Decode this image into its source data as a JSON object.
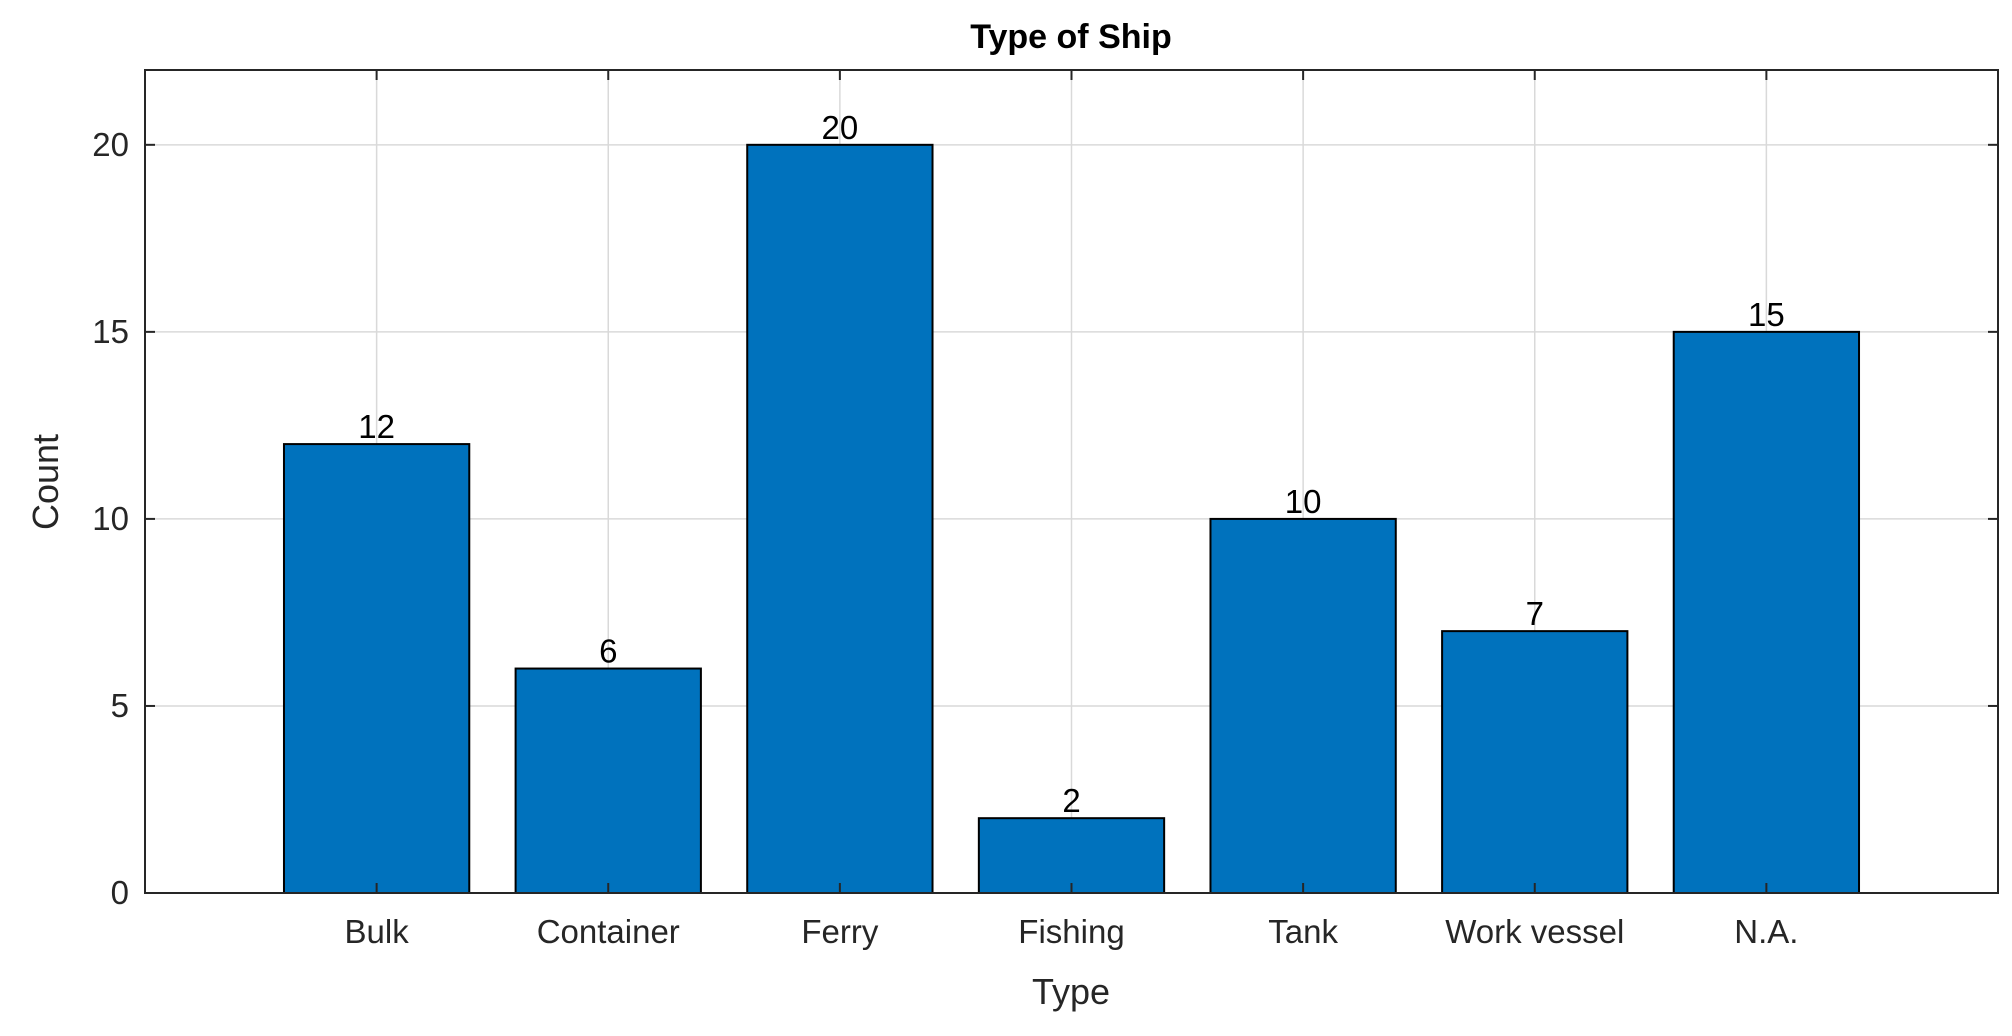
{
  "chart_data": {
    "type": "bar",
    "title": "Type of Ship",
    "xlabel": "Type",
    "ylabel": "Count",
    "categories": [
      "Bulk",
      "Container",
      "Ferry",
      "Fishing",
      "Tank",
      "Work vessel",
      "N.A."
    ],
    "values": [
      12,
      6,
      20,
      2,
      10,
      7,
      15
    ],
    "data_labels": [
      "12",
      "6",
      "20",
      "2",
      "10",
      "7",
      "15"
    ],
    "xlim": [
      0,
      8
    ],
    "ylim": [
      0,
      22
    ],
    "yticks": [
      0,
      5,
      10,
      15,
      20
    ],
    "ytick_labels": [
      "0",
      "5",
      "10",
      "15",
      "20"
    ],
    "grid": true,
    "legend": "none",
    "colors": {
      "bar": "#0072BD",
      "bar_edge": "#000000",
      "grid": "#D9D9D9",
      "axes": "#262626"
    }
  }
}
